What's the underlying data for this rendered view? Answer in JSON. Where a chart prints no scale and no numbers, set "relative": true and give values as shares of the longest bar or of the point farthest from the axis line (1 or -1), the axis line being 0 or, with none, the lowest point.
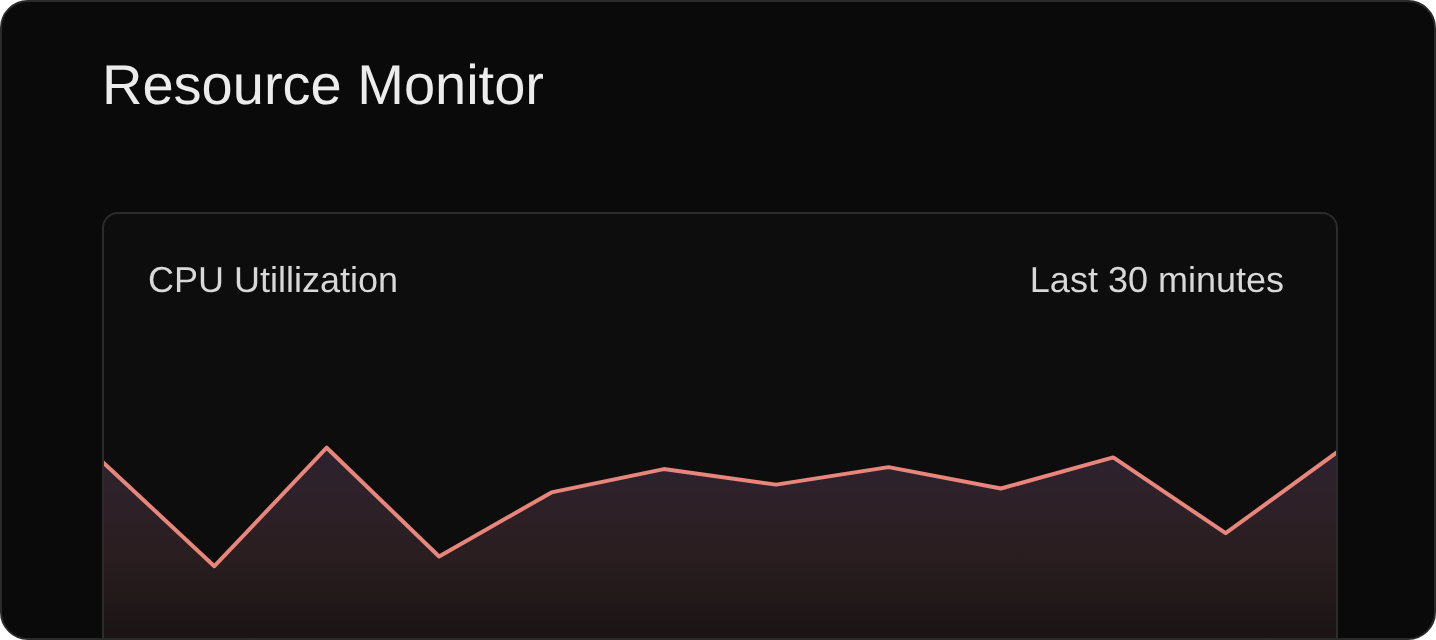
{
  "chart_data": {
    "type": "area",
    "title": "Resource Monitor",
    "subtitle": "CPU Utillization",
    "annotations": [
      "Last 30 minutes"
    ],
    "relative": true,
    "categories": [
      null,
      null,
      null,
      null,
      null,
      null,
      null,
      null,
      null,
      null,
      null,
      null
    ],
    "series": [
      {
        "color": "#e8867c",
        "values": [
          0.93,
          0.39,
          1,
          0.44,
          0.77,
          0.89,
          0.81,
          0.9,
          0.79,
          0.95,
          0.56,
          0.98
        ]
      }
    ]
  }
}
